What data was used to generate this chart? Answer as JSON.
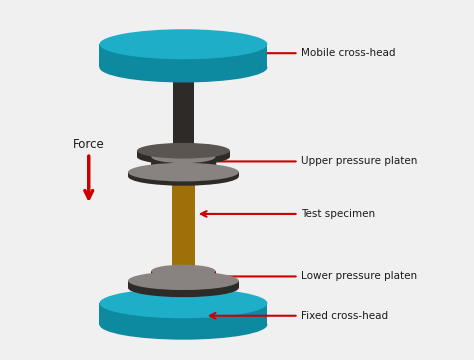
{
  "bg_color": "#f0f0f0",
  "teal_top": "#1eaec8",
  "teal_side": "#0d8aa0",
  "dark_gray_top": "#5a5550",
  "dark_gray_side": "#2e2a28",
  "medium_gray_top": "#888380",
  "medium_gray_side": "#555250",
  "gold_top": "#c89010",
  "gold_side": "#a07008",
  "red_arrow": "#cc0000",
  "label_color": "#1a1a1a",
  "labels": {
    "mobile_crosshead": "Mobile cross-head",
    "upper_platen": "Upper pressure platen",
    "test_specimen": "Test specimen",
    "lower_platen": "Lower pressure platen",
    "fixed_crosshead": "Fixed cross-head",
    "force": "Force"
  },
  "figsize": [
    4.74,
    3.6
  ],
  "dpi": 100
}
